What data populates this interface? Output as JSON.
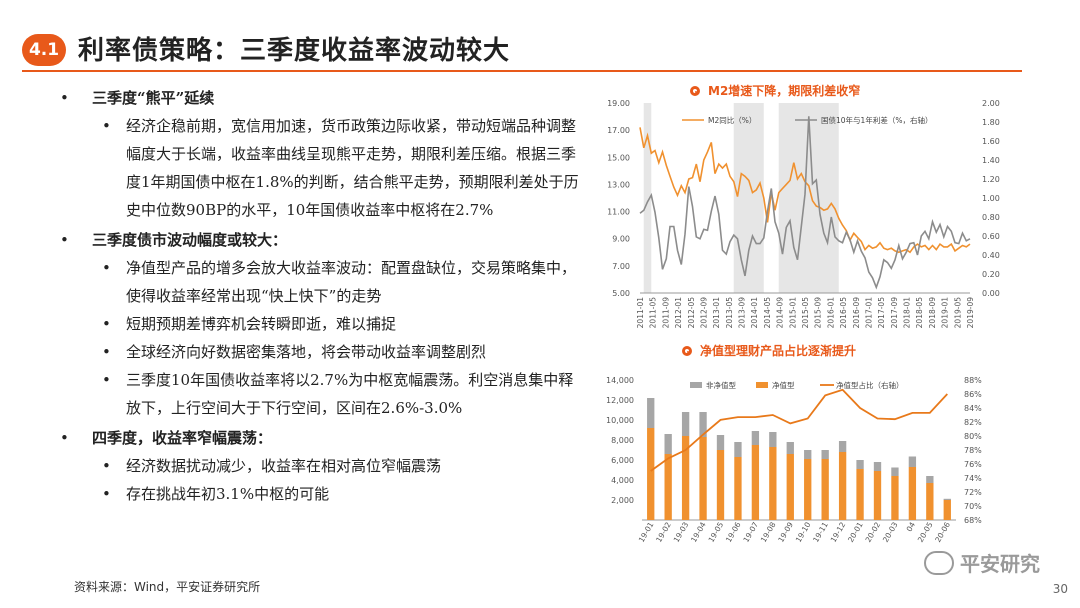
{
  "header": {
    "section_number": "4.1",
    "title": "利率债策略：三季度收益率波动较大"
  },
  "bullets": [
    {
      "level": 1,
      "text": "三季度“熊平”延续"
    },
    {
      "level": 2,
      "text": "经济企稳前期，宽信用加速，货币政策边际收紧，带动短端品种调整幅度大于长端，收益率曲线呈现熊平走势，期限利差压缩。根据三季度1年期国债中枢在1.8%的判断，结合熊平走势，预期限利差处于历史中位数90BP的水平，10年国债收益率中枢将在2.7%"
    },
    {
      "level": 1,
      "text": "三季度债市波动幅度或较大："
    },
    {
      "level": 2,
      "text": "净值型产品的增多会放大收益率波动：配置盘缺位，交易策略集中，使得收益率经常出现“快上快下”的走势"
    },
    {
      "level": 2,
      "text": "短期预期差博弈机会转瞬即逝，难以捕捉"
    },
    {
      "level": 2,
      "text": "全球经济向好数据密集落地，将会带动收益率调整剧烈"
    },
    {
      "level": 2,
      "text": "三季度10年国债收益率将以2.7%为中枢宽幅震荡。利空消息集中释放下，上行空间大于下行空间，区间在2.6%-3.0%"
    },
    {
      "level": 1,
      "text": "四季度，收益率窄幅震荡："
    },
    {
      "level": 2,
      "text": "经济数据扰动减少，收益率在相对高位窄幅震荡"
    },
    {
      "level": 2,
      "text": "存在挑战年初3.1%中枢的可能"
    }
  ],
  "footer": {
    "source": "资料来源：Wind，平安证券研究所",
    "page": "30",
    "watermark": "平安研究"
  },
  "colors": {
    "accent": "#e8591a",
    "orange": "#f0912f",
    "gray": "#8c8c8c",
    "shade": "#e6e6e6"
  },
  "chart_data": [
    {
      "type": "line",
      "title": "M2增速下降，期限利差收窄",
      "x_tick_labels": [
        "2011-01",
        "2011-05",
        "2011-09",
        "2012-01",
        "2012-05",
        "2012-09",
        "2013-01",
        "2013-05",
        "2013-09",
        "2014-01",
        "2014-05",
        "2014-09",
        "2015-01",
        "2015-05",
        "2015-09",
        "2016-01",
        "2016-05",
        "2016-09",
        "2017-01",
        "2017-05",
        "2017-09",
        "2018-01",
        "2018-05",
        "2018-09",
        "2019-01",
        "2019-05",
        "2019-09"
      ],
      "ylim_left": [
        5.0,
        19.0
      ],
      "yticks_left": [
        "5.00",
        "7.00",
        "9.00",
        "11.00",
        "13.00",
        "15.00",
        "17.00",
        "19.00"
      ],
      "ylim_right": [
        0.0,
        2.0
      ],
      "yticks_right": [
        "0.00",
        "0.20",
        "0.40",
        "0.60",
        "0.80",
        "1.00",
        "1.20",
        "1.40",
        "1.60",
        "1.80",
        "2.00"
      ],
      "shaded_periods": [
        [
          1,
          3
        ],
        [
          25,
          33
        ],
        [
          37,
          53
        ]
      ],
      "series": [
        {
          "name": "M2同比（%）",
          "axis": "left",
          "color": "#f0912f",
          "values": [
            17.2,
            15.7,
            16.6,
            15.3,
            15.5,
            14.6,
            15.4,
            14.4,
            13.6,
            12.8,
            12.2,
            12.9,
            12.4,
            13.4,
            13.5,
            14.5,
            13.2,
            14.8,
            15.4,
            16.1,
            13.8,
            14.5,
            14.2,
            14.5,
            13.6,
            13.2,
            12.1,
            13.8,
            13.6,
            13.3,
            12.4,
            12.6,
            13.1,
            12.0,
            10.2,
            12.4,
            11.1,
            12.4,
            12.7,
            13.0,
            13.3,
            14.6,
            13.4,
            13.8,
            13.2,
            12.9,
            11.8,
            11.4,
            11.3,
            11.1,
            11.2,
            11.6,
            11.2,
            10.5,
            10.0,
            9.6,
            8.9,
            9.4,
            9.1,
            8.8,
            8.2,
            8.5,
            8.3,
            8.4,
            8.7,
            8.3,
            8.2,
            8.3,
            8.1,
            8.0,
            8.1,
            8.2,
            8.0,
            8.4,
            8.6,
            8.4,
            8.5,
            8.2,
            8.5,
            8.2,
            8.6,
            8.4,
            8.4,
            8.6,
            8.1,
            8.3,
            8.5,
            8.4,
            8.6
          ]
        },
        {
          "name": "国债10年与1年利差（%，右轴）",
          "axis": "right",
          "color": "#8c8c8c",
          "values": [
            0.84,
            0.87,
            0.96,
            1.03,
            0.85,
            0.58,
            0.25,
            0.36,
            0.7,
            0.7,
            0.45,
            0.3,
            0.62,
            1.12,
            0.91,
            0.59,
            0.57,
            0.67,
            0.66,
            0.86,
            1.02,
            0.83,
            0.45,
            0.41,
            0.54,
            0.61,
            0.57,
            0.35,
            0.18,
            0.45,
            0.6,
            0.52,
            0.52,
            0.58,
            0.86,
            1.1,
            0.75,
            0.63,
            0.41,
            0.69,
            0.76,
            0.48,
            0.35,
            0.7,
            1.04,
            1.86,
            1.15,
            1.19,
            0.83,
            0.63,
            0.53,
            0.8,
            0.59,
            0.55,
            0.53,
            0.64,
            0.56,
            0.43,
            0.55,
            0.44,
            0.37,
            0.22,
            0.16,
            0.06,
            0.17,
            0.35,
            0.32,
            0.26,
            0.35,
            0.5,
            0.36,
            0.43,
            0.52,
            0.53,
            0.4,
            0.6,
            0.65,
            0.57,
            0.75,
            0.64,
            0.72,
            0.59,
            0.7,
            0.65,
            0.53,
            0.52,
            0.63,
            0.55,
            0.57
          ]
        }
      ]
    },
    {
      "type": "bar",
      "title": "净值型理财产品占比逐渐提升",
      "categories": [
        "19-01",
        "19-02",
        "19-03",
        "19-04",
        "19-05",
        "19-06",
        "19-07",
        "19-08",
        "19-09",
        "19-10",
        "19-11",
        "19-12",
        "20-01",
        "20-02",
        "20-03",
        "04",
        "20-05",
        "20-06"
      ],
      "ylim_left": [
        0,
        14000
      ],
      "yticks_left": [
        "2,000",
        "4,000",
        "6,000",
        "8,000",
        "10,000",
        "12,000",
        "14,000"
      ],
      "ylim_right": [
        68,
        88
      ],
      "yticks_right": [
        "68%",
        "70%",
        "72%",
        "74%",
        "76%",
        "78%",
        "80%",
        "82%",
        "84%",
        "86%",
        "88%"
      ],
      "series": [
        {
          "name": "非净值型",
          "axis": "left",
          "type": "bar",
          "stacked": true,
          "color": "#a6a6a6",
          "values": [
            3000,
            2000,
            2400,
            2500,
            1500,
            1500,
            1400,
            1500,
            1200,
            900,
            900,
            1100,
            900,
            900,
            850,
            1050,
            700,
            120
          ]
        },
        {
          "name": "净值型",
          "axis": "left",
          "type": "bar",
          "stacked": true,
          "color": "#f0912f",
          "values": [
            9200,
            6600,
            8400,
            8300,
            7000,
            6300,
            7500,
            7300,
            6600,
            6100,
            6100,
            6800,
            5100,
            4900,
            4400,
            5300,
            3700,
            2000
          ]
        },
        {
          "name": "净值型占比（右轴）",
          "axis": "right",
          "type": "line",
          "color": "#e8791a",
          "values": [
            75.0,
            76.8,
            78.0,
            80.2,
            82.3,
            82.7,
            82.7,
            83.0,
            81.8,
            82.5,
            85.8,
            86.6,
            84.0,
            82.5,
            82.4,
            83.3,
            83.3,
            86.0
          ]
        }
      ]
    }
  ]
}
